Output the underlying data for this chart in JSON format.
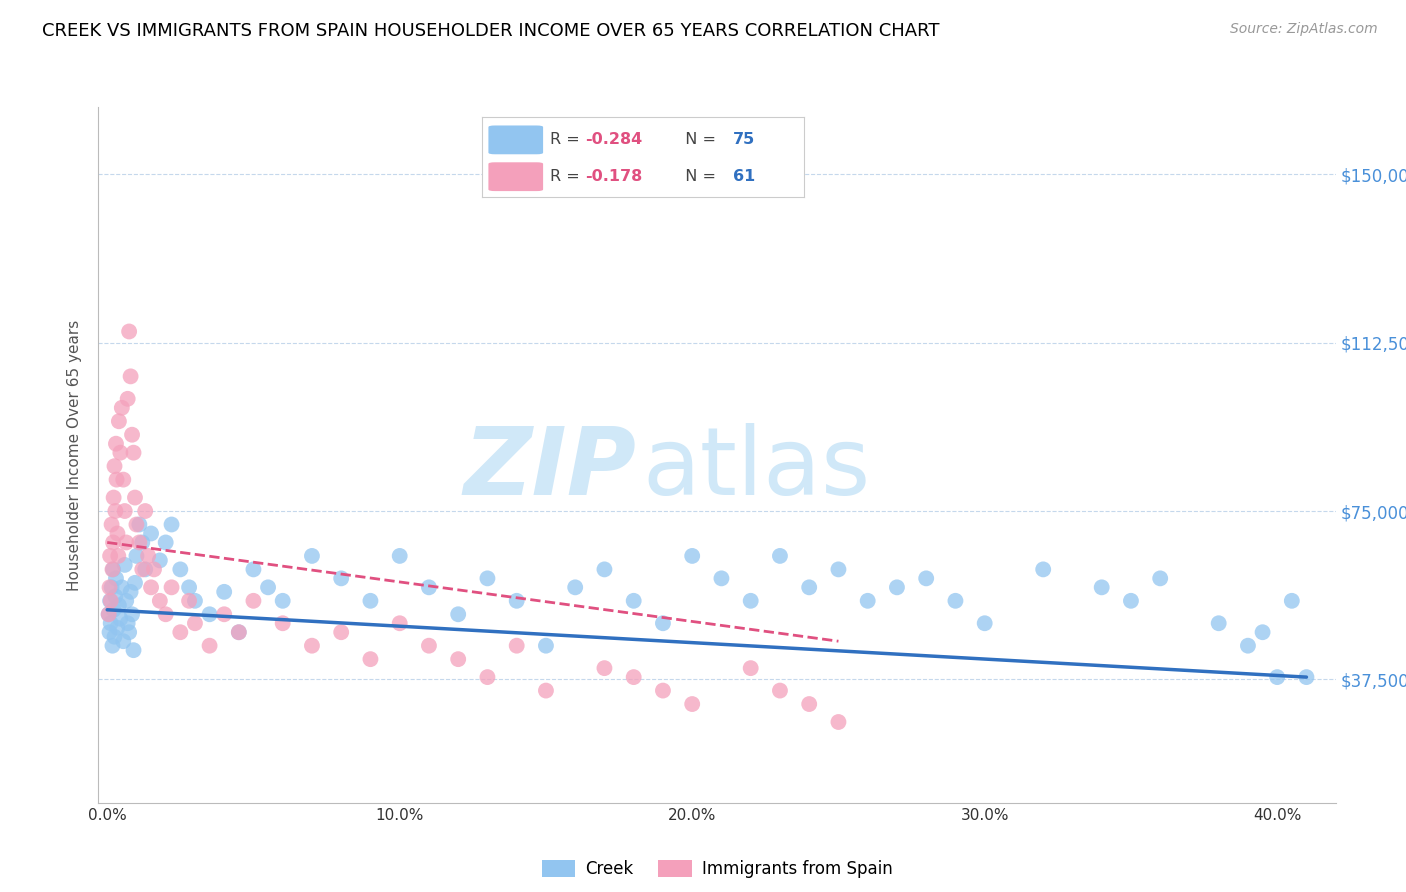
{
  "title": "CREEK VS IMMIGRANTS FROM SPAIN HOUSEHOLDER INCOME OVER 65 YEARS CORRELATION CHART",
  "source": "Source: ZipAtlas.com",
  "ylabel": "Householder Income Over 65 years",
  "ylabel_ticks": [
    "$37,500",
    "$75,000",
    "$112,500",
    "$150,000"
  ],
  "ylabel_vals": [
    37500,
    75000,
    112500,
    150000
  ],
  "xlabel_ticks": [
    "0.0%",
    "10.0%",
    "20.0%",
    "30.0%",
    "40.0%"
  ],
  "xlabel_vals": [
    0.0,
    10.0,
    20.0,
    30.0,
    40.0
  ],
  "ylim": [
    10000,
    165000
  ],
  "xlim": [
    -0.3,
    42
  ],
  "creek_color": "#92C5F0",
  "spain_color": "#F4A0BB",
  "creek_line_color": "#3070C0",
  "spain_line_color": "#E05080",
  "watermark_zip": "ZIP",
  "watermark_atlas": "atlas",
  "watermark_color": "#D0E8F8",
  "legend_R_creek": "-0.284",
  "legend_N_creek": "75",
  "legend_R_spain": "-0.178",
  "legend_N_spain": "61",
  "title_fontsize": 13,
  "source_fontsize": 10,
  "tick_fontsize": 11,
  "ylabel_fontsize": 11,
  "creek_x": [
    0.05,
    0.08,
    0.1,
    0.12,
    0.15,
    0.18,
    0.2,
    0.22,
    0.25,
    0.28,
    0.3,
    0.35,
    0.4,
    0.45,
    0.5,
    0.55,
    0.6,
    0.65,
    0.7,
    0.75,
    0.8,
    0.85,
    0.9,
    0.95,
    1.0,
    1.1,
    1.2,
    1.3,
    1.5,
    1.8,
    2.0,
    2.2,
    2.5,
    2.8,
    3.0,
    3.5,
    4.0,
    4.5,
    5.0,
    5.5,
    6.0,
    7.0,
    8.0,
    9.0,
    10.0,
    11.0,
    12.0,
    13.0,
    14.0,
    15.0,
    16.0,
    17.0,
    18.0,
    19.0,
    20.0,
    21.0,
    22.0,
    23.0,
    24.0,
    25.0,
    26.0,
    27.0,
    28.0,
    29.0,
    30.0,
    32.0,
    34.0,
    35.0,
    36.0,
    38.0,
    39.0,
    39.5,
    40.0,
    40.5,
    41.0
  ],
  "creek_y": [
    52000,
    48000,
    55000,
    50000,
    58000,
    45000,
    62000,
    53000,
    47000,
    56000,
    60000,
    49000,
    54000,
    51000,
    58000,
    46000,
    63000,
    55000,
    50000,
    48000,
    57000,
    52000,
    44000,
    59000,
    65000,
    72000,
    68000,
    62000,
    70000,
    64000,
    68000,
    72000,
    62000,
    58000,
    55000,
    52000,
    57000,
    48000,
    62000,
    58000,
    55000,
    65000,
    60000,
    55000,
    65000,
    58000,
    52000,
    60000,
    55000,
    45000,
    58000,
    62000,
    55000,
    50000,
    65000,
    60000,
    55000,
    65000,
    58000,
    62000,
    55000,
    58000,
    60000,
    55000,
    50000,
    62000,
    58000,
    55000,
    60000,
    50000,
    45000,
    48000,
    38000,
    55000,
    38000
  ],
  "spain_x": [
    0.05,
    0.08,
    0.1,
    0.12,
    0.15,
    0.18,
    0.2,
    0.22,
    0.25,
    0.28,
    0.3,
    0.32,
    0.35,
    0.38,
    0.4,
    0.45,
    0.5,
    0.55,
    0.6,
    0.65,
    0.7,
    0.75,
    0.8,
    0.85,
    0.9,
    0.95,
    1.0,
    1.1,
    1.2,
    1.3,
    1.4,
    1.5,
    1.6,
    1.8,
    2.0,
    2.2,
    2.5,
    2.8,
    3.0,
    3.5,
    4.0,
    4.5,
    5.0,
    6.0,
    7.0,
    8.0,
    9.0,
    10.0,
    11.0,
    12.0,
    13.0,
    14.0,
    15.0,
    17.0,
    18.0,
    19.0,
    20.0,
    22.0,
    23.0,
    24.0,
    25.0
  ],
  "spain_y": [
    52000,
    58000,
    65000,
    55000,
    72000,
    62000,
    68000,
    78000,
    85000,
    75000,
    90000,
    82000,
    70000,
    65000,
    95000,
    88000,
    98000,
    82000,
    75000,
    68000,
    100000,
    115000,
    105000,
    92000,
    88000,
    78000,
    72000,
    68000,
    62000,
    75000,
    65000,
    58000,
    62000,
    55000,
    52000,
    58000,
    48000,
    55000,
    50000,
    45000,
    52000,
    48000,
    55000,
    50000,
    45000,
    48000,
    42000,
    50000,
    45000,
    42000,
    38000,
    45000,
    35000,
    40000,
    38000,
    35000,
    32000,
    40000,
    35000,
    32000,
    28000
  ]
}
